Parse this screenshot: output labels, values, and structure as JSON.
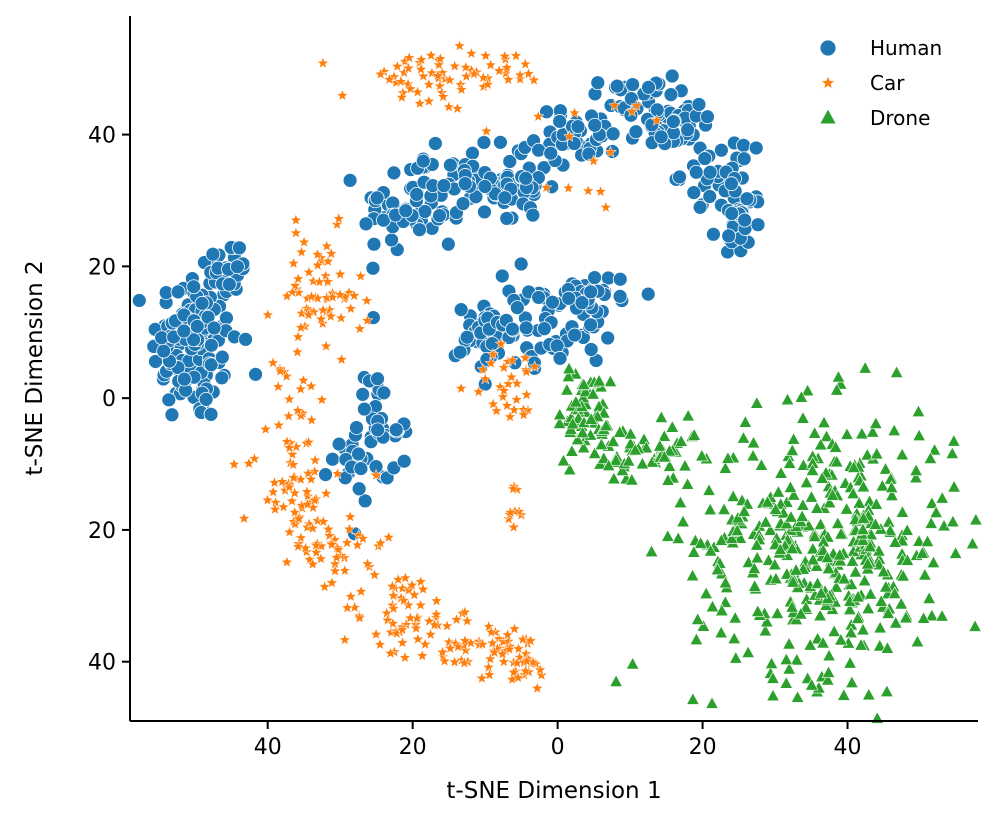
{
  "chart_data": {
    "type": "scatter",
    "title": "",
    "xlabel": "t-SNE Dimension 1",
    "ylabel": "t-SNE Dimension 2",
    "xlim": [
      -59,
      58
    ],
    "ylim": [
      -49,
      58
    ],
    "grid": false,
    "legend_position": "top-right",
    "x_ticks": [
      {
        "value": -40,
        "label": "40"
      },
      {
        "value": -20,
        "label": "20"
      },
      {
        "value": 0,
        "label": "0"
      },
      {
        "value": 20,
        "label": "20"
      },
      {
        "value": 40,
        "label": "40"
      }
    ],
    "y_ticks": [
      {
        "value": 40,
        "label": "40"
      },
      {
        "value": 20,
        "label": "20"
      },
      {
        "value": 0,
        "label": "0"
      },
      {
        "value": -20,
        "label": "20"
      },
      {
        "value": -40,
        "label": "40"
      }
    ],
    "series": [
      {
        "name": "Human",
        "marker": "circle",
        "color": "#1f77b4",
        "clusters": [
          {
            "cx": -50,
            "cy": 8,
            "sx": 3.0,
            "sy": 6.0,
            "n": 140
          },
          {
            "cx": -45.5,
            "cy": 20,
            "sx": 1.5,
            "sy": 2.0,
            "n": 30
          },
          {
            "cx": -20,
            "cy": 29,
            "sx": 3.5,
            "sy": 4.0,
            "n": 60
          },
          {
            "cx": -12,
            "cy": 33,
            "sx": 3.0,
            "sy": 2.5,
            "n": 40
          },
          {
            "cx": -5,
            "cy": 32,
            "sx": 2.0,
            "sy": 3.0,
            "n": 35
          },
          {
            "cx": 3,
            "cy": 40,
            "sx": 3.0,
            "sy": 2.0,
            "n": 40
          },
          {
            "cx": 10,
            "cy": 45,
            "sx": 3.0,
            "sy": 2.0,
            "n": 30
          },
          {
            "cx": 16,
            "cy": 41,
            "sx": 3.0,
            "sy": 2.0,
            "n": 40
          },
          {
            "cx": 22,
            "cy": 34,
            "sx": 2.5,
            "sy": 2.0,
            "n": 30
          },
          {
            "cx": 25,
            "cy": 27,
            "sx": 1.5,
            "sy": 3.0,
            "n": 40
          },
          {
            "cx": -10,
            "cy": 9,
            "sx": 2.0,
            "sy": 2.5,
            "n": 40
          },
          {
            "cx": -4,
            "cy": 12,
            "sx": 2.0,
            "sy": 4.0,
            "n": 30
          },
          {
            "cx": 2,
            "cy": 11,
            "sx": 2.5,
            "sy": 3.0,
            "n": 30
          },
          {
            "cx": 5,
            "cy": 16,
            "sx": 2.5,
            "sy": 1.5,
            "n": 25
          },
          {
            "cx": -27,
            "cy": -9,
            "sx": 2.0,
            "sy": 3.0,
            "n": 30
          },
          {
            "cx": -25,
            "cy": -1,
            "sx": 0.8,
            "sy": 2.5,
            "n": 15
          },
          {
            "cx": -22,
            "cy": -5,
            "sx": 1.5,
            "sy": 1.0,
            "n": 10
          }
        ]
      },
      {
        "name": "Car",
        "marker": "star",
        "color": "#ff7f0e",
        "clusters": [
          {
            "cx": -18,
            "cy": 48,
            "sx": 6.0,
            "sy": 2.5,
            "n": 60
          },
          {
            "cx": -6,
            "cy": 50,
            "sx": 2.5,
            "sy": 1.0,
            "n": 10
          },
          {
            "cx": -33,
            "cy": 15,
            "sx": 3.0,
            "sy": 5.0,
            "n": 70
          },
          {
            "cx": -36,
            "cy": -3,
            "sx": 2.0,
            "sy": 4.0,
            "n": 20
          },
          {
            "cx": -37,
            "cy": -14,
            "sx": 3.0,
            "sy": 4.0,
            "n": 50
          },
          {
            "cx": -30,
            "cy": -22,
            "sx": 3.0,
            "sy": 3.0,
            "n": 40
          },
          {
            "cx": -22,
            "cy": -32,
            "sx": 4.0,
            "sy": 3.0,
            "n": 50
          },
          {
            "cx": -12,
            "cy": -38,
            "sx": 4.0,
            "sy": 2.5,
            "n": 50
          },
          {
            "cx": -5,
            "cy": -40,
            "sx": 2.0,
            "sy": 2.5,
            "n": 30
          },
          {
            "cx": -6,
            "cy": 2,
            "sx": 3.0,
            "sy": 3.0,
            "n": 30
          },
          {
            "cx": -6,
            "cy": -16,
            "sx": 0.6,
            "sy": 2.0,
            "n": 10
          },
          {
            "cx": 2,
            "cy": 35,
            "sx": 4.0,
            "sy": 5.0,
            "n": 10
          },
          {
            "cx": 11,
            "cy": 43,
            "sx": 2.0,
            "sy": 2.0,
            "n": 4
          }
        ]
      },
      {
        "name": "Drone",
        "marker": "triangle",
        "color": "#2ca02c",
        "clusters": [
          {
            "cx": 37,
            "cy": -22,
            "sx": 9.0,
            "sy": 10.0,
            "n": 430
          },
          {
            "cx": 12,
            "cy": -9,
            "sx": 4.0,
            "sy": 2.5,
            "n": 60
          },
          {
            "cx": 4,
            "cy": -3,
            "sx": 2.0,
            "sy": 3.0,
            "n": 50
          },
          {
            "cx": 4,
            "cy": 3,
            "sx": 1.5,
            "sy": 1.0,
            "n": 10
          }
        ]
      }
    ]
  }
}
